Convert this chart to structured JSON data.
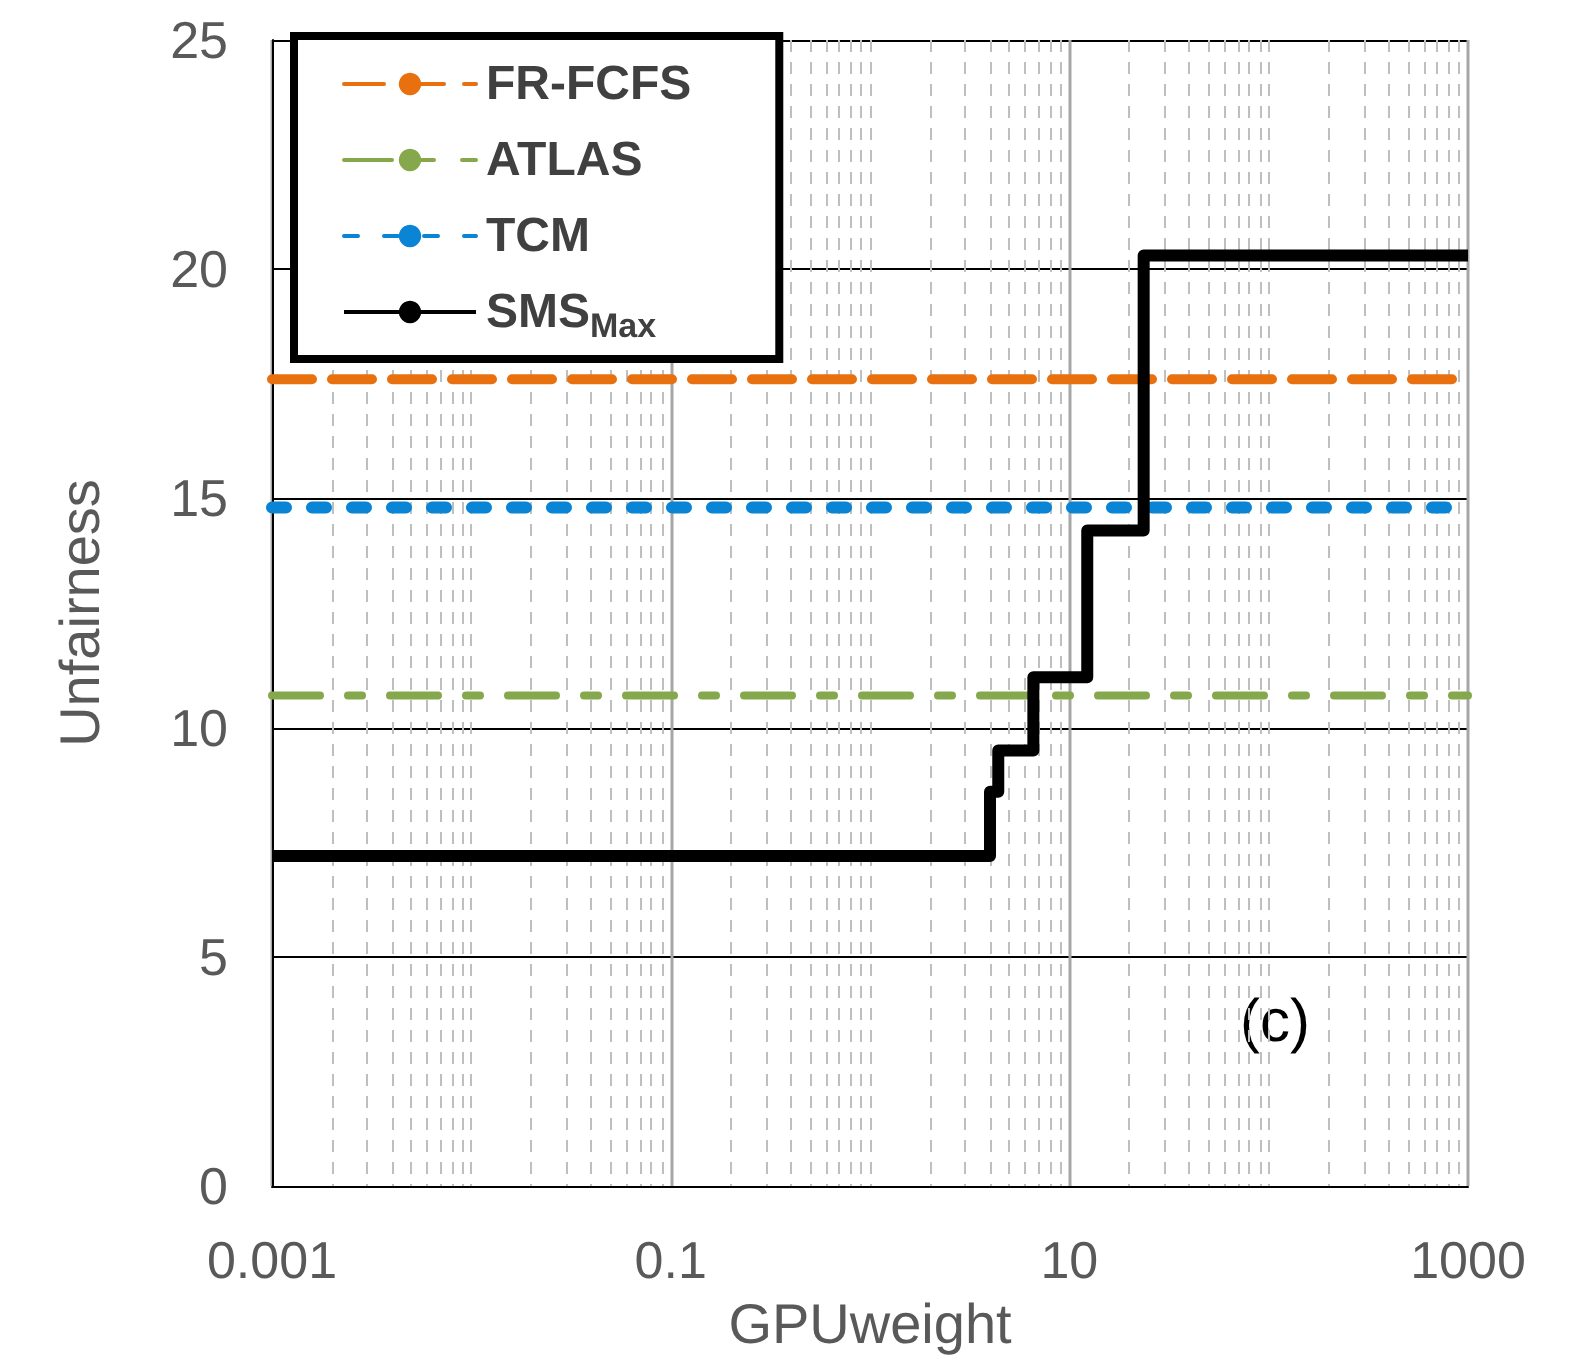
{
  "chart_data": {
    "type": "line",
    "xlabel": "GPUweight",
    "ylabel": "Unfairness",
    "log": "x",
    "xlim": [
      0.001,
      1000
    ],
    "xticks": [
      0.001,
      0.1,
      10,
      1000
    ],
    "ylim": [
      0,
      25
    ],
    "yticks": [
      0,
      5,
      10,
      15,
      20,
      25
    ],
    "grid": true,
    "legend": "top left",
    "marker": "none",
    "annotations": [
      "(c)"
    ],
    "series": [
      {
        "name": "FR-FCFS",
        "color": "#e8700f",
        "line_style": "dashed",
        "x": [
          0.001,
          1000
        ],
        "values": [
          17.6,
          17.6
        ]
      },
      {
        "name": "ATLAS",
        "color": "#86a84c",
        "line_style": "dashdot",
        "x": [
          0.001,
          1000
        ],
        "values": [
          10.7,
          10.7
        ]
      },
      {
        "name": "TCM",
        "color": "#0a84d4",
        "line_style": "dotted",
        "x": [
          0.001,
          1000
        ],
        "values": [
          14.8,
          14.8
        ]
      },
      {
        "name": "SMS$_{Max}$",
        "type": "step",
        "color": "#000000",
        "line_style": "solid",
        "x": [
          0.001,
          4.0,
          4.4,
          6.6,
          12.3,
          23.6,
          1000
        ],
        "values": [
          7.2,
          8.6,
          9.5,
          11.1,
          14.3,
          20.3,
          20.3
        ]
      }
    ]
  }
}
